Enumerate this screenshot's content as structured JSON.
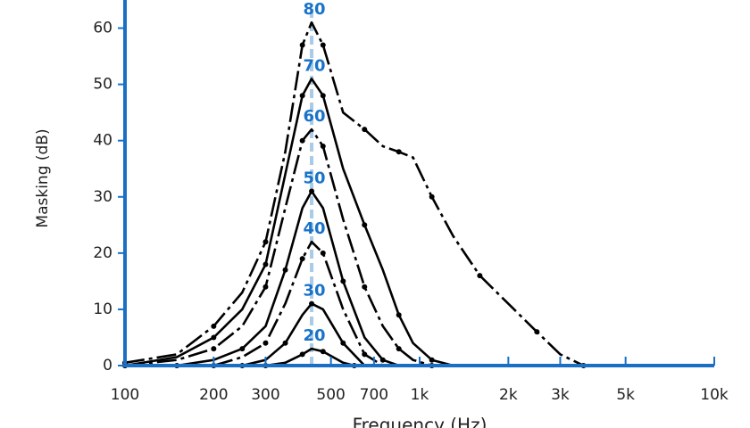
{
  "chart_data": {
    "type": "line",
    "ylabel": "Masking (dB)",
    "xlabel": "Frequency (Hz)",
    "xscale": "log",
    "xlim": [
      100,
      10000
    ],
    "ylim": [
      0,
      65
    ],
    "xticks": [
      100,
      200,
      300,
      500,
      700,
      {
        "value": 1000,
        "label": "1k"
      },
      {
        "value": 2000,
        "label": "2k"
      },
      {
        "value": 3000,
        "label": "3k"
      },
      {
        "value": 5000,
        "label": "5k"
      },
      {
        "value": 10000,
        "label": "10k"
      }
    ],
    "yticks": [
      0,
      10,
      20,
      30,
      40,
      50,
      60
    ],
    "axis_color": "#1a6fc4",
    "label_color": "#1a73c8",
    "masker_x": 430,
    "masker_color": "#a9cbe8",
    "series": [
      {
        "name": "80",
        "color": "#000000",
        "dashed": true,
        "x": [
          100,
          150,
          200,
          250,
          300,
          350,
          400,
          430,
          470,
          550,
          650,
          750,
          850,
          950,
          1100,
          1300,
          1600,
          2000,
          2500,
          3000,
          3600
        ],
        "values": [
          0.5,
          2,
          7,
          13,
          22,
          38,
          57,
          61,
          57,
          45,
          42,
          39,
          38,
          37,
          30,
          23,
          16,
          11,
          6,
          2,
          0
        ]
      },
      {
        "name": "70",
        "color": "#000000",
        "dashed": false,
        "x": [
          100,
          150,
          200,
          250,
          300,
          350,
          400,
          430,
          470,
          550,
          650,
          750,
          850,
          950,
          1100,
          1300
        ],
        "values": [
          0,
          1.5,
          5,
          10,
          18,
          34,
          48,
          51,
          48,
          35,
          25,
          17,
          9,
          4,
          1,
          0
        ]
      },
      {
        "name": "60",
        "color": "#000000",
        "dashed": true,
        "x": [
          100,
          150,
          200,
          250,
          300,
          350,
          400,
          430,
          470,
          550,
          650,
          750,
          850,
          950,
          1100
        ],
        "values": [
          0,
          1,
          3,
          7,
          14,
          28,
          40,
          42,
          39,
          26,
          14,
          7,
          3,
          1,
          0
        ]
      },
      {
        "name": "50",
        "color": "#000000",
        "dashed": false,
        "x": [
          150,
          200,
          250,
          300,
          350,
          400,
          430,
          470,
          550,
          650,
          750,
          850
        ],
        "values": [
          0,
          1,
          3,
          7,
          17,
          28,
          31,
          28,
          15,
          5,
          1,
          0
        ]
      },
      {
        "name": "40",
        "color": "#000000",
        "dashed": true,
        "x": [
          200,
          250,
          300,
          350,
          400,
          430,
          470,
          550,
          650,
          750
        ],
        "values": [
          0,
          1.5,
          4,
          11,
          19,
          22,
          20,
          10,
          2,
          0
        ]
      },
      {
        "name": "30",
        "color": "#000000",
        "dashed": false,
        "x": [
          250,
          300,
          350,
          400,
          430,
          470,
          550,
          650
        ],
        "values": [
          0,
          1,
          4,
          9,
          11,
          10,
          4,
          0
        ]
      },
      {
        "name": "20",
        "color": "#000000",
        "dashed": false,
        "x": [
          300,
          350,
          400,
          430,
          470,
          550,
          600
        ],
        "values": [
          0,
          0.5,
          2,
          3,
          2.5,
          0.5,
          0
        ]
      }
    ]
  }
}
